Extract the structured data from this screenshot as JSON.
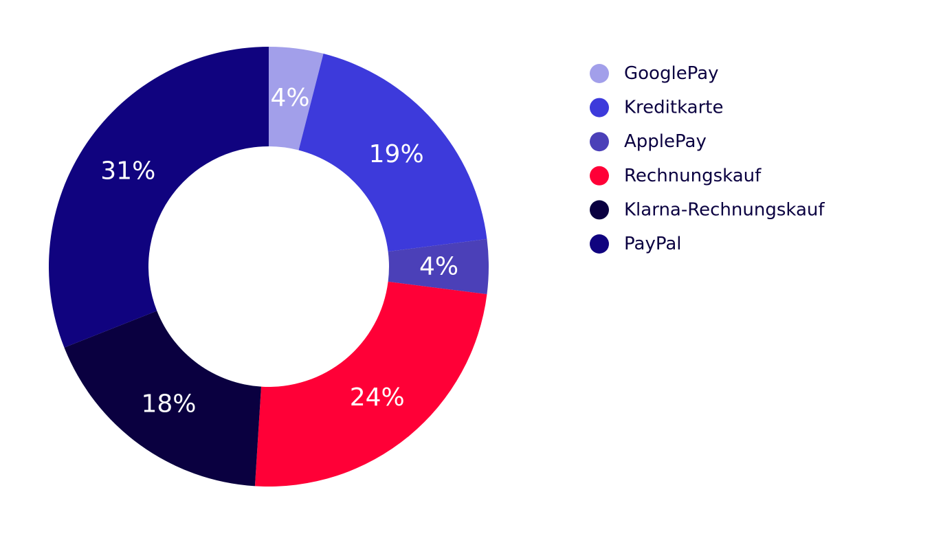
{
  "chart_data": {
    "type": "donut",
    "categories": [
      "GooglePay",
      "Kreditkarte",
      "ApplePay",
      "Rechnungskauf",
      "Klarna-Rechnungskauf",
      "PayPal"
    ],
    "values": [
      4,
      19,
      4,
      24,
      18,
      31
    ],
    "value_labels": [
      "4%",
      "19%",
      "4%",
      "24%",
      "18%",
      "31%"
    ],
    "colors": [
      "#a29fea",
      "#3d3adb",
      "#4b40b8",
      "#ff0037",
      "#0a0040",
      "#10037f"
    ],
    "legend": "right"
  }
}
